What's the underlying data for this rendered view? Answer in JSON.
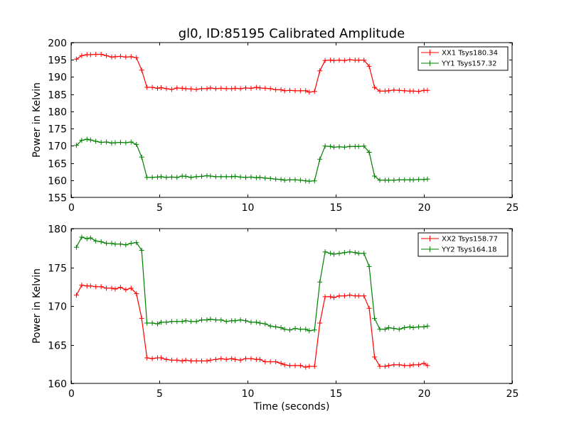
{
  "chart_data": [
    {
      "type": "line",
      "title": "gl0, ID:85195 Calibrated Amplitude",
      "xlabel": "",
      "ylabel": "Power in Kelvin",
      "xlim": [
        0,
        25
      ],
      "ylim": [
        155,
        200
      ],
      "xticks": [
        0,
        5,
        10,
        15,
        20,
        25
      ],
      "yticks": [
        155,
        160,
        165,
        170,
        175,
        180,
        185,
        190,
        195,
        200
      ],
      "grid": false,
      "legend_position": "top-right",
      "x": [
        0.3,
        0.6,
        0.9,
        1.1,
        1.4,
        1.7,
        2.0,
        2.3,
        2.5,
        2.8,
        3.1,
        3.4,
        3.7,
        4.0,
        4.3,
        4.6,
        4.9,
        5.1,
        5.4,
        5.7,
        6.0,
        6.3,
        6.5,
        6.8,
        7.1,
        7.4,
        7.7,
        7.9,
        8.2,
        8.5,
        8.8,
        9.1,
        9.3,
        9.6,
        9.9,
        10.2,
        10.5,
        10.7,
        11.0,
        11.3,
        11.6,
        11.9,
        12.1,
        12.4,
        12.7,
        13.0,
        13.3,
        13.5,
        13.8,
        14.1,
        14.4,
        14.7,
        14.9,
        15.2,
        15.5,
        15.8,
        16.1,
        16.3,
        16.6,
        16.9,
        17.2,
        17.5,
        17.8,
        18.0,
        18.3,
        18.6,
        18.9,
        19.2,
        19.4,
        19.7,
        20.0,
        20.2
      ],
      "series": [
        {
          "name": "XX1 Tsys180.34",
          "color": "#ff0000",
          "values": [
            195.2,
            196.2,
            196.5,
            196.5,
            196.6,
            196.6,
            196.2,
            195.8,
            195.9,
            196.0,
            195.8,
            195.9,
            195.6,
            192.0,
            187.0,
            187.0,
            186.7,
            186.9,
            186.6,
            186.4,
            186.8,
            186.7,
            186.6,
            186.5,
            186.4,
            186.6,
            186.6,
            186.8,
            186.6,
            186.7,
            186.6,
            186.6,
            186.7,
            186.6,
            186.8,
            186.7,
            187.0,
            186.8,
            186.7,
            186.6,
            186.3,
            186.3,
            186.0,
            186.1,
            186.0,
            186.0,
            186.0,
            185.6,
            185.8,
            191.8,
            194.8,
            194.9,
            194.8,
            194.9,
            194.8,
            195.0,
            194.9,
            194.9,
            194.9,
            193.1,
            187.0,
            185.9,
            185.9,
            186.0,
            186.2,
            186.1,
            186.0,
            185.9,
            185.9,
            185.8,
            186.1,
            186.1
          ]
        },
        {
          "name": "YY1 Tsys157.32",
          "color": "#008000",
          "values": [
            170.1,
            171.6,
            171.9,
            171.7,
            171.3,
            171.0,
            171.1,
            170.8,
            170.9,
            171.0,
            170.9,
            171.1,
            170.4,
            166.7,
            160.8,
            160.8,
            160.9,
            161.0,
            160.8,
            160.9,
            160.8,
            161.2,
            161.1,
            160.8,
            161.0,
            161.1,
            161.3,
            161.2,
            161.0,
            161.0,
            161.0,
            161.0,
            161.1,
            160.9,
            160.8,
            160.9,
            160.7,
            160.8,
            160.6,
            160.5,
            160.3,
            160.2,
            160.0,
            160.1,
            160.1,
            160.0,
            159.8,
            159.7,
            159.8,
            166.1,
            169.9,
            169.8,
            169.6,
            169.7,
            169.6,
            169.8,
            169.8,
            169.8,
            169.9,
            168.1,
            161.2,
            160.0,
            160.0,
            160.0,
            160.0,
            160.1,
            160.1,
            160.1,
            160.1,
            160.2,
            160.2,
            160.3
          ]
        }
      ]
    },
    {
      "type": "line",
      "title": "",
      "xlabel": "Time (seconds)",
      "ylabel": "Power in Kelvin",
      "xlim": [
        0,
        25
      ],
      "ylim": [
        160,
        180
      ],
      "xticks": [
        0,
        5,
        10,
        15,
        20,
        25
      ],
      "yticks": [
        160,
        165,
        170,
        175,
        180
      ],
      "grid": false,
      "legend_position": "top-right",
      "x": [
        0.3,
        0.6,
        0.9,
        1.1,
        1.4,
        1.7,
        2.0,
        2.3,
        2.5,
        2.8,
        3.1,
        3.4,
        3.7,
        4.0,
        4.3,
        4.6,
        4.9,
        5.1,
        5.4,
        5.7,
        6.0,
        6.3,
        6.5,
        6.8,
        7.1,
        7.4,
        7.7,
        7.9,
        8.2,
        8.5,
        8.8,
        9.1,
        9.3,
        9.6,
        9.9,
        10.2,
        10.5,
        10.7,
        11.0,
        11.3,
        11.6,
        11.9,
        12.1,
        12.4,
        12.7,
        13.0,
        13.3,
        13.5,
        13.8,
        14.1,
        14.4,
        14.7,
        14.9,
        15.2,
        15.5,
        15.8,
        16.1,
        16.3,
        16.6,
        16.9,
        17.2,
        17.5,
        17.8,
        18.0,
        18.3,
        18.6,
        18.9,
        19.2,
        19.4,
        19.7,
        20.0,
        20.2
      ],
      "series": [
        {
          "name": "XX2 Tsys158.77",
          "color": "#ff0000",
          "values": [
            171.4,
            172.7,
            172.6,
            172.6,
            172.5,
            172.5,
            172.3,
            172.3,
            172.2,
            172.4,
            172.1,
            172.3,
            171.6,
            168.4,
            163.3,
            163.2,
            163.3,
            163.3,
            163.1,
            163.0,
            163.0,
            162.9,
            163.0,
            162.9,
            162.9,
            162.9,
            162.9,
            163.0,
            163.1,
            163.2,
            163.1,
            163.2,
            163.1,
            163.0,
            163.2,
            163.2,
            163.1,
            163.1,
            162.8,
            162.8,
            162.8,
            162.6,
            162.4,
            162.3,
            162.3,
            162.3,
            162.1,
            162.2,
            162.2,
            167.8,
            171.2,
            171.2,
            171.1,
            171.3,
            171.3,
            171.4,
            171.3,
            171.3,
            171.3,
            169.7,
            163.4,
            162.2,
            162.2,
            162.3,
            162.4,
            162.4,
            162.3,
            162.3,
            162.4,
            162.4,
            162.6,
            162.3
          ]
        },
        {
          "name": "YY2 Tsys164.18",
          "color": "#008000",
          "values": [
            177.6,
            178.9,
            178.7,
            178.8,
            178.4,
            178.3,
            178.1,
            178.1,
            178.0,
            178.0,
            177.9,
            178.1,
            178.2,
            177.2,
            167.8,
            167.8,
            167.7,
            167.9,
            167.9,
            168.0,
            168.0,
            168.0,
            168.1,
            168.0,
            168.0,
            168.2,
            168.2,
            168.3,
            168.2,
            168.2,
            168.0,
            168.1,
            168.1,
            168.2,
            168.1,
            167.9,
            167.9,
            167.8,
            167.7,
            167.4,
            167.3,
            167.2,
            167.0,
            166.9,
            167.1,
            167.0,
            167.0,
            166.8,
            166.9,
            173.1,
            177.0,
            176.8,
            176.7,
            176.8,
            176.9,
            177.0,
            176.9,
            176.8,
            176.8,
            175.1,
            168.4,
            167.0,
            167.0,
            167.2,
            167.1,
            167.0,
            167.2,
            167.3,
            167.2,
            167.3,
            167.3,
            167.4
          ]
        }
      ]
    }
  ]
}
